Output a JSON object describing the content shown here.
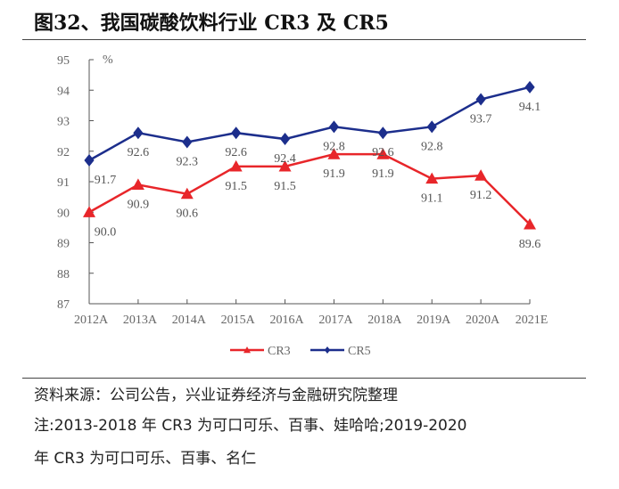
{
  "title": "图32、我国碳酸饮料行业 CR3 及 CR5",
  "source": "资料来源：公司公告，兴业证券经济与金融研究院整理",
  "note_line1": "注:2013-2018 年 CR3 为可口可乐、百事、娃哈哈;2019-2020",
  "note_line2": "年 CR3 为可口可乐、百事、名仁",
  "chart_data": {
    "type": "line",
    "title": "",
    "xlabel": "",
    "ylabel": "%",
    "ylim": [
      87,
      95
    ],
    "yticks": [
      "87",
      "88",
      "89",
      "90",
      "91",
      "92",
      "93",
      "94",
      "95"
    ],
    "categories": [
      "2012A",
      "2013A",
      "2014A",
      "2015A",
      "2016A",
      "2017A",
      "2018A",
      "2019A",
      "2020A",
      "2021E"
    ],
    "grid": false,
    "legend_position": "bottom",
    "series": [
      {
        "name": "CR3",
        "color": "#e8262a",
        "marker": "triangle",
        "values": [
          90.0,
          90.9,
          90.6,
          91.5,
          91.5,
          91.9,
          91.9,
          91.1,
          91.2,
          89.6
        ],
        "labels": [
          "90.0",
          "90.9",
          "90.6",
          "91.5",
          "91.5",
          "91.9",
          "91.9",
          "91.1",
          "91.2",
          "89.6"
        ]
      },
      {
        "name": "CR5",
        "color": "#1c2e8c",
        "marker": "diamond",
        "values": [
          91.7,
          92.6,
          92.3,
          92.6,
          92.4,
          92.8,
          92.6,
          92.8,
          93.7,
          94.1
        ],
        "labels": [
          "91.7",
          "92.6",
          "92.3",
          "92.6",
          "92.4",
          "92.8",
          "92.6",
          "92.8",
          "93.7",
          "94.1"
        ]
      }
    ]
  }
}
